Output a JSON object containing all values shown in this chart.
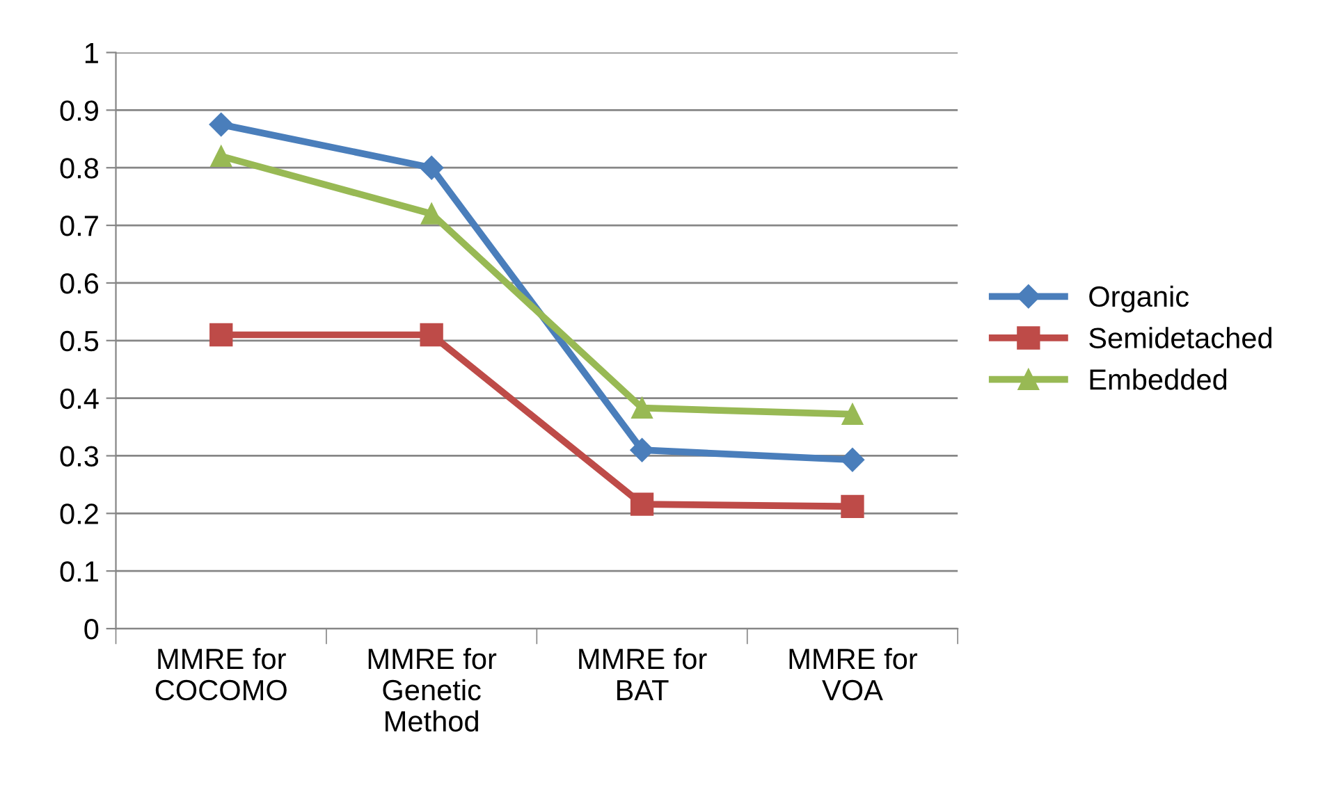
{
  "chart_data": {
    "type": "line",
    "categories": [
      "MMRE for\nCOCOMO",
      "MMRE for\nGenetic\nMethod",
      "MMRE for\nBAT",
      "MMRE for\nVOA"
    ],
    "series": [
      {
        "name": "Organic",
        "color": "#4a7ebb",
        "values": [
          0.875,
          0.8,
          0.31,
          0.293
        ],
        "marker": "diamond"
      },
      {
        "name": "Semidetached",
        "color": "#be4b48",
        "values": [
          0.51,
          0.51,
          0.216,
          0.212
        ],
        "marker": "square"
      },
      {
        "name": "Embedded",
        "color": "#98b954",
        "values": [
          0.82,
          0.72,
          0.383,
          0.372
        ],
        "marker": "triangle"
      }
    ],
    "ylim": [
      0,
      1
    ],
    "yticks": [
      0,
      0.1,
      0.2,
      0.3,
      0.4,
      0.5,
      0.6,
      0.7,
      0.8,
      0.9,
      1
    ],
    "grid": "y",
    "legend": "right",
    "line_style": "solid"
  }
}
